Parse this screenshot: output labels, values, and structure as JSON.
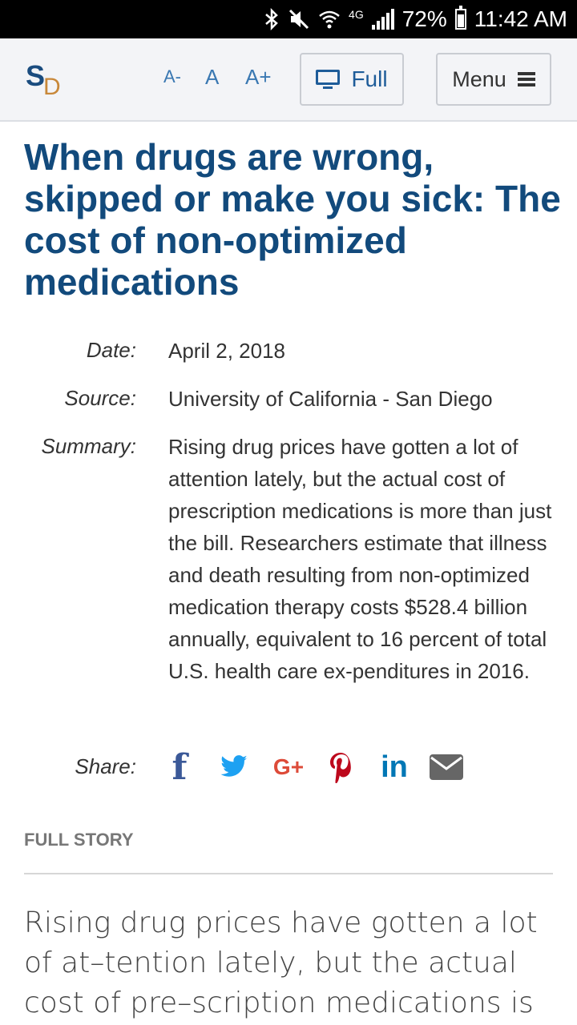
{
  "status_bar": {
    "battery": "72%",
    "time": "11:42 AM",
    "network": "4G",
    "icons": [
      "bluetooth-icon",
      "mute-icon",
      "wifi-icon",
      "signal-icon",
      "battery-icon"
    ]
  },
  "header": {
    "logo_s": "S",
    "logo_d": "D",
    "font_decrease": "A-",
    "font_normal": "A",
    "font_increase": "A+",
    "full_label": "Full",
    "menu_label": "Menu"
  },
  "article": {
    "title": "When drugs are wrong, skipped or make you sick: The cost of non-optimized medications",
    "date_label": "Date:",
    "date": "April 2, 2018",
    "source_label": "Source:",
    "source": "University of California - San Diego",
    "summary_label": "Summary:",
    "summary": "Rising drug prices have gotten a lot of attention lately, but the actual cost of prescription medications is more than just the bill. Researchers estimate that illness and death resulting from non-optimized medication therapy costs $528.4 billion annually, equivalent to 16 percent of total U.S. health care ex-penditures in 2016.",
    "share_label": "Share:",
    "share_icons": {
      "facebook": "f",
      "google_plus": "G+",
      "linkedin": "in"
    },
    "full_story_label": "FULL STORY",
    "story_text": "Rising drug prices have gotten a lot of at–tention lately, but the actual cost of pre–scription medications is more than just"
  },
  "colors": {
    "title": "#124a7c",
    "link": "#3a78b2",
    "facebook": "#3b5998",
    "twitter": "#1da1f2",
    "google_plus": "#dd4b39",
    "pinterest": "#bd081c",
    "linkedin": "#0077b5",
    "email": "#666666"
  }
}
